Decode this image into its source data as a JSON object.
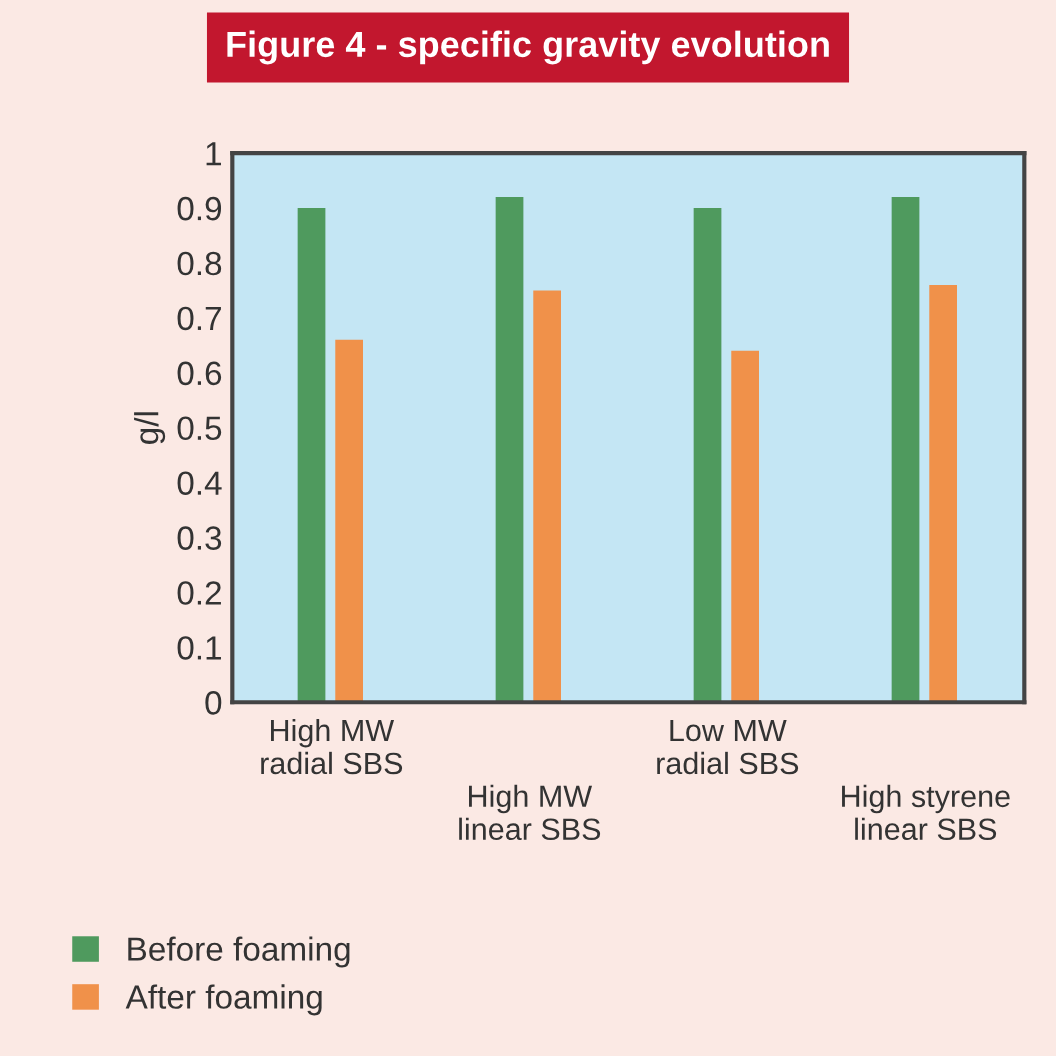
{
  "chart_data": {
    "type": "bar",
    "title": "Figure 4 - specific gravity evolution",
    "ylabel": "g/l",
    "categories": [
      "High MW\nradial SBS",
      "High MW\nlinear SBS",
      "Low MW\nradial SBS",
      "High styrene\nlinear SBS"
    ],
    "series": [
      {
        "name": "Before foaming",
        "color": "#4f9a5e",
        "values": [
          0.9,
          0.92,
          0.9,
          0.92
        ]
      },
      {
        "name": "After foaming",
        "color": "#f0914a",
        "values": [
          0.66,
          0.75,
          0.64,
          0.76
        ]
      }
    ],
    "ylim": [
      0,
      1
    ],
    "yticks": [
      0,
      0.1,
      0.2,
      0.3,
      0.4,
      0.5,
      0.6,
      0.7,
      0.8,
      0.9,
      1
    ],
    "grid": false,
    "legend": "bottom left"
  }
}
